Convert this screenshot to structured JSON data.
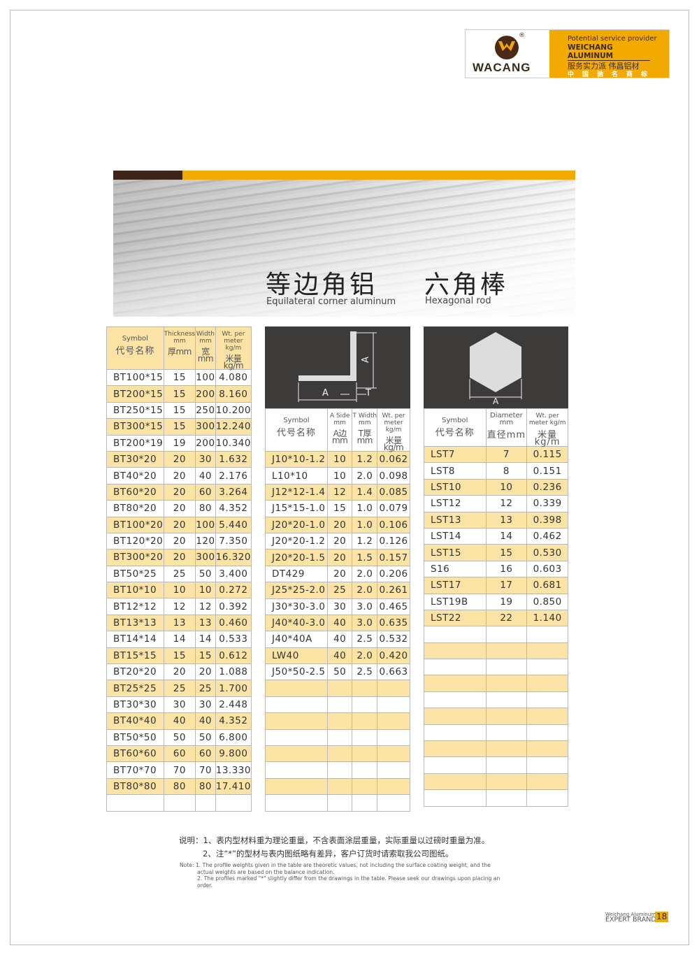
{
  "logo": {
    "brand": "WACANG",
    "registered": "®",
    "line1": "Potential service provider",
    "line2": "WEICHANG ALUMINUM",
    "line3": "服务实力派  伟昌铝材",
    "line4": "中国驰名商标"
  },
  "banner": {
    "title1_cn": "等边角铝",
    "title1_en": "Equilateral corner aluminum",
    "title2_cn": "六角棒",
    "title2_en": "Hexagonal rod"
  },
  "colors": {
    "yellow": "#f2a900",
    "row_highlight": "#fbe3a6",
    "dark": "#3d2519"
  },
  "table1": {
    "headers": [
      {
        "en": "Symbol",
        "cn": "代号名称"
      },
      {
        "en": "Thickness mm",
        "cn": "厚mm"
      },
      {
        "en": "Width mm",
        "cn": "宽mm"
      },
      {
        "en": "Wt. per meter kg/m",
        "cn": "米量kg/m"
      }
    ],
    "rows": [
      [
        "BT100*15",
        "15",
        "100",
        "4.080"
      ],
      [
        "BT200*15",
        "15",
        "200",
        "8.160"
      ],
      [
        "BT250*15",
        "15",
        "250",
        "10.200"
      ],
      [
        "BT300*15",
        "15",
        "300",
        "12.240"
      ],
      [
        "BT200*19",
        "19",
        "200",
        "10.340"
      ],
      [
        "BT30*20",
        "20",
        "30",
        "1.632"
      ],
      [
        "BT40*20",
        "20",
        "40",
        "2.176"
      ],
      [
        "BT60*20",
        "20",
        "60",
        "3.264"
      ],
      [
        "BT80*20",
        "20",
        "80",
        "4.352"
      ],
      [
        "BT100*20",
        "20",
        "100",
        "5.440"
      ],
      [
        "BT120*20",
        "20",
        "120",
        "7.350"
      ],
      [
        "BT300*20",
        "20",
        "300",
        "16.320"
      ],
      [
        "BT50*25",
        "25",
        "50",
        "3.400"
      ],
      [
        "BT10*10",
        "10",
        "10",
        "0.272"
      ],
      [
        "BT12*12",
        "12",
        "12",
        "0.392"
      ],
      [
        "BT13*13",
        "13",
        "13",
        "0.460"
      ],
      [
        "BT14*14",
        "14",
        "14",
        "0.533"
      ],
      [
        "BT15*15",
        "15",
        "15",
        "0.612"
      ],
      [
        "BT20*20",
        "20",
        "20",
        "1.088"
      ],
      [
        "BT25*25",
        "25",
        "25",
        "1.700"
      ],
      [
        "BT30*30",
        "30",
        "30",
        "2.448"
      ],
      [
        "BT40*40",
        "40",
        "40",
        "4.352"
      ],
      [
        "BT50*50",
        "50",
        "50",
        "6.800"
      ],
      [
        "BT60*60",
        "60",
        "60",
        "9.800"
      ],
      [
        "BT70*70",
        "70",
        "70",
        "13.330"
      ],
      [
        "BT80*80",
        "80",
        "80",
        "17.410"
      ]
    ]
  },
  "table2": {
    "diagram_labels": {
      "side": "A",
      "thickness": "T"
    },
    "headers": [
      {
        "en": "Symbol",
        "cn": "代号名称"
      },
      {
        "en": "A Side mm",
        "cn": "A边mm"
      },
      {
        "en": "T Width mm",
        "cn": "T厚mm"
      },
      {
        "en": "Wt. per meter kg/m",
        "cn": "米量kg/m"
      }
    ],
    "rows": [
      [
        "J10*10-1.2",
        "10",
        "1.2",
        "0.062"
      ],
      [
        "L10*10",
        "10",
        "2.0",
        "0.098"
      ],
      [
        "J12*12-1.4",
        "12",
        "1.4",
        "0.085"
      ],
      [
        "J15*15-1.0",
        "15",
        "1.0",
        "0.079"
      ],
      [
        "J20*20-1.0",
        "20",
        "1.0",
        "0.106"
      ],
      [
        "J20*20-1.2",
        "20",
        "1.2",
        "0.126"
      ],
      [
        "J20*20-1.5",
        "20",
        "1.5",
        "0.157"
      ],
      [
        "DT429",
        "20",
        "2.0",
        "0.206"
      ],
      [
        "J25*25-2.0",
        "25",
        "2.0",
        "0.261"
      ],
      [
        "J30*30-3.0",
        "30",
        "3.0",
        "0.465"
      ],
      [
        "J40*40-3.0",
        "40",
        "3.0",
        "0.635"
      ],
      [
        "J40*40A",
        "40",
        "2.5",
        "0.532"
      ],
      [
        "LW40",
        "40",
        "2.0",
        "0.420"
      ],
      [
        "J50*50-2.5",
        "50",
        "2.5",
        "0.663"
      ]
    ]
  },
  "table3": {
    "diagram_labels": {
      "diameter": "A"
    },
    "headers": [
      {
        "en": "Symbol",
        "cn": "代号名称"
      },
      {
        "en": "Diameter mm",
        "cn": "直径mm"
      },
      {
        "en": "Wt. per meter kg/m",
        "cn": "米量kg/m"
      }
    ],
    "rows": [
      [
        "LST7",
        "7",
        "0.115"
      ],
      [
        "LST8",
        "8",
        "0.151"
      ],
      [
        "LST10",
        "10",
        "0.236"
      ],
      [
        "LST12",
        "12",
        "0.339"
      ],
      [
        "LST13",
        "13",
        "0.398"
      ],
      [
        "LST14",
        "14",
        "0.462"
      ],
      [
        "LST15",
        "15",
        "0.530"
      ],
      [
        "S16",
        "16",
        "0.603"
      ],
      [
        "LST17",
        "17",
        "0.681"
      ],
      [
        "LST19B",
        "19",
        "0.850"
      ],
      [
        "LST22",
        "22",
        "1.140"
      ]
    ]
  },
  "notes": {
    "cn1": "说明：1、表内型材料重为理论重量，不含表面涂层重量，实际重量以过磅时重量为准。",
    "cn2": "2、注“*”的型材与表内图纸略有差异，客户订货时请索取我公司图纸。",
    "en1": "Note: 1. The profile weights given in the table are theoretic values, not including the surface coating weight, and the actual weights are based on the balance indication.",
    "en2": "2. The profiles marked \"*\" slightly differ from the drawings in the table. Please seek our drawings upon placing an order."
  },
  "footer": {
    "company": "Weichang Aluminum",
    "tagline": "EXPERT BRAND",
    "page": "18"
  }
}
